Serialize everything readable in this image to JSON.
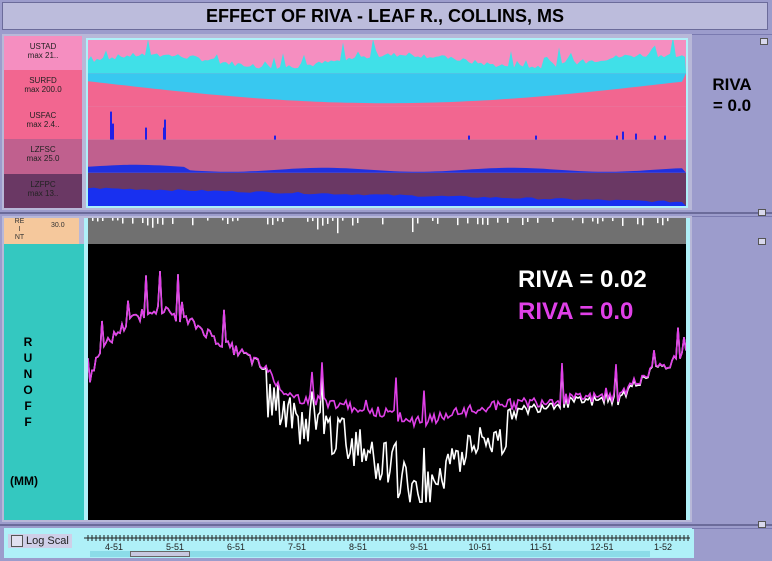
{
  "window": {
    "title": "EFFECT OF RIVA - LEAF R., COLLINS, MS"
  },
  "top_panel": {
    "bands": [
      {
        "lines": [
          "USTAD",
          "max   21.."
        ],
        "color": "#f58ec0"
      },
      {
        "lines": [
          "SURFD",
          "max  200.0"
        ],
        "color": "#f26690"
      },
      {
        "lines": [
          "USFAC",
          "max   2.4.."
        ],
        "color": "#f26690"
      },
      {
        "lines": [
          "LZFSC",
          "max   25.0"
        ],
        "color": "#c0608e"
      },
      {
        "lines": [
          "LZFPC",
          "max  13.."
        ],
        "color": "#6a3864"
      }
    ],
    "riva_label_line1": "RIVA",
    "riva_label_line2": "= 0.0"
  },
  "bottom_panel": {
    "precip_label": [
      "RE",
      "I",
      "NT"
    ],
    "precip_max": "30.0",
    "runoff_letters": [
      "R",
      "U",
      "N",
      "O",
      "F",
      "F"
    ],
    "runoff_unit": "(MM)",
    "legend": [
      {
        "label": "RIVA = 0.02",
        "color": "#ffffff"
      },
      {
        "label": "RIVA = 0.0",
        "color": "#e040e8"
      }
    ],
    "log_scale_label": "Log Scal",
    "time_ticks": [
      "4-51",
      "5-51",
      "6-51",
      "7-51",
      "8-51",
      "9-51",
      "10-51",
      "11-51",
      "12-51",
      "1-52"
    ]
  },
  "chart_data": {
    "type": "line",
    "x": [
      "4-51",
      "5-51",
      "6-51",
      "7-51",
      "8-51",
      "9-51",
      "10-51",
      "11-51",
      "12-51",
      "1-52"
    ],
    "series": [
      {
        "name": "RIVA = 0.02",
        "color": "#ffffff",
        "values": [
          0.8,
          6.5,
          2.5,
          0.55,
          0.3,
          0.06,
          0.3,
          0.5,
          0.55,
          1.8
        ]
      },
      {
        "name": "RIVA = 0.0",
        "color": "#e040e8",
        "values": [
          0.8,
          6.5,
          2.5,
          0.6,
          0.45,
          0.3,
          0.45,
          0.55,
          0.6,
          1.8
        ]
      }
    ],
    "yscale": "log"
  }
}
